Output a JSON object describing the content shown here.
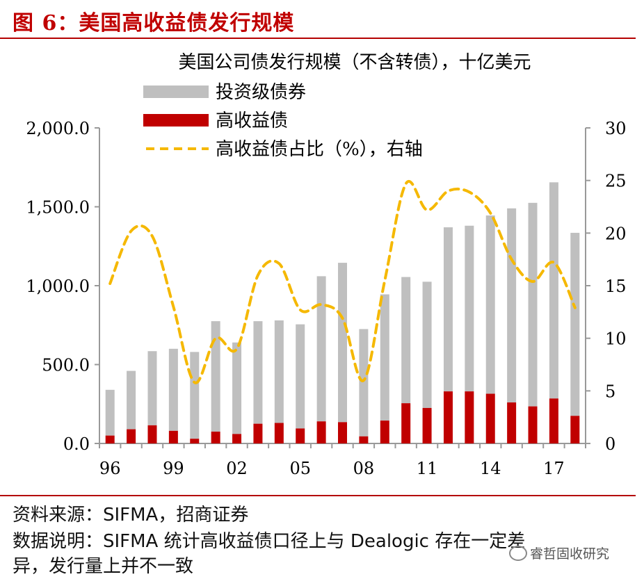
{
  "figure": {
    "title": "图 6：美国高收益债发行规模"
  },
  "chart_data": {
    "type": "bar",
    "title": "美国公司债发行规模（不含转债），十亿美元",
    "x": [
      1996,
      1997,
      1998,
      1999,
      2000,
      2001,
      2002,
      2003,
      2004,
      2005,
      2006,
      2007,
      2008,
      2009,
      2010,
      2011,
      2012,
      2013,
      2014,
      2015,
      2016,
      2017,
      2018
    ],
    "x_tick_labels": [
      "96",
      "99",
      "02",
      "05",
      "08",
      "11",
      "14",
      "17"
    ],
    "y_left": {
      "range": [
        0,
        2000
      ],
      "ticks": [
        "0.0",
        "500.0",
        "1,000.0",
        "1,500.0",
        "2,000.0"
      ]
    },
    "y_right": {
      "range": [
        0,
        30
      ],
      "ticks": [
        "0",
        "5",
        "10",
        "15",
        "20",
        "25",
        "30"
      ]
    },
    "series": [
      {
        "name": "投资级债券",
        "color": "#bfbfbf",
        "kind": "stacked-bar",
        "values": [
          290,
          370,
          470,
          520,
          550,
          700,
          580,
          650,
          650,
          660,
          920,
          1010,
          680,
          800,
          800,
          800,
          1040,
          1050,
          1130,
          1230,
          1290,
          1370,
          1160
        ]
      },
      {
        "name": "高收益债",
        "color": "#c00000",
        "kind": "stacked-bar",
        "values": [
          50,
          90,
          115,
          80,
          30,
          75,
          60,
          125,
          130,
          95,
          140,
          135,
          45,
          145,
          255,
          225,
          330,
          330,
          315,
          260,
          235,
          285,
          175
        ]
      },
      {
        "name": "高收益债占比（%），右轴",
        "color": "#f5b800",
        "kind": "dashed-line",
        "axis": "right",
        "values": [
          15.2,
          20.2,
          19.7,
          13.0,
          5.8,
          10.0,
          9.0,
          16.0,
          17.1,
          12.7,
          13.2,
          11.9,
          6.0,
          15.5,
          24.7,
          22.2,
          24.0,
          23.9,
          21.9,
          17.5,
          15.4,
          17.2,
          12.9
        ]
      }
    ],
    "legend_position": "top-left",
    "grid": false
  },
  "footer": {
    "source": "资料来源：SIFMA，招商证券",
    "note_line1": "数据说明：SIFMA 统计高收益债口径上与 Dealogic 存在一定差",
    "note_line2": "异，发行量上并不一致"
  },
  "watermark": {
    "text": "睿哲固收研究",
    "icon": "wechat-icon"
  }
}
